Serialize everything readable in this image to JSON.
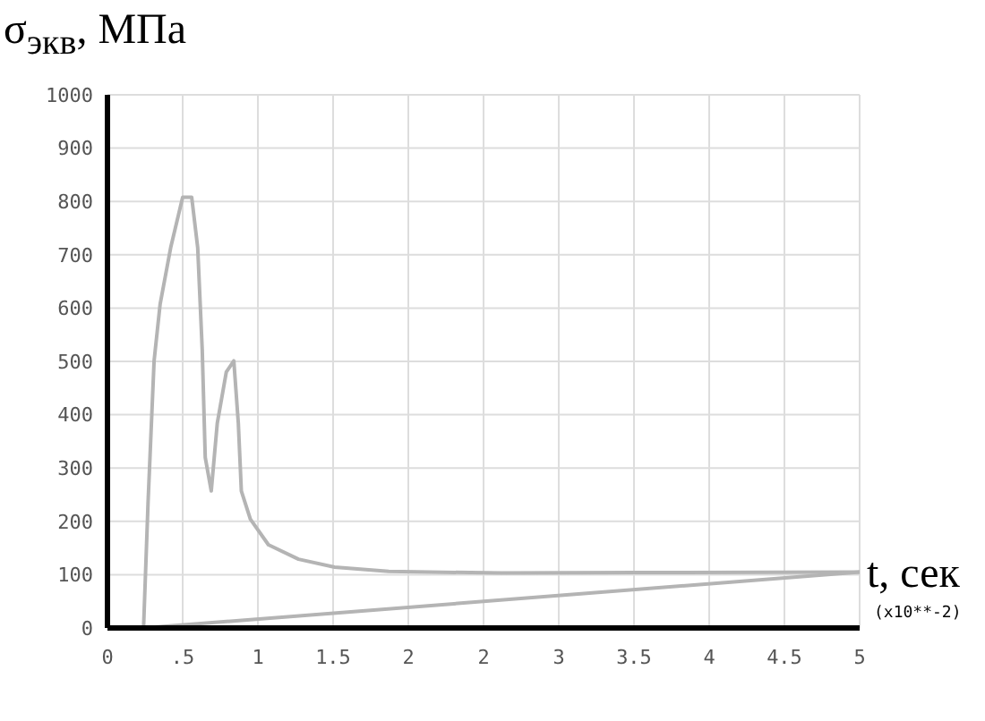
{
  "chart_data": {
    "type": "line",
    "ylabel": "σ$_{экв}$, МПа",
    "xlabel": "t, сек",
    "annotations": [
      "(x10**-2)"
    ],
    "series": [
      {
        "color": "#b4b4b4",
        "x": [
          0,
          0.24,
          0.27,
          0.31,
          0.35,
          0.42,
          0.5,
          0.56,
          0.6,
          0.63,
          0.65,
          0.69,
          0.73,
          0.79,
          0.84,
          0.87,
          0.89,
          0.95,
          1.07,
          1.27,
          1.51,
          1.87,
          2.62,
          3.5,
          5
        ],
        "values": [
          0,
          0,
          236,
          501,
          607,
          713,
          808,
          808,
          713,
          522,
          320,
          257,
          384,
          480,
          501,
          384,
          257,
          204,
          156,
          129,
          114,
          106,
          103,
          104,
          105
        ]
      },
      {
        "color": "#b4b4b4",
        "x": [
          0.24,
          5
        ],
        "values": [
          0,
          105
        ]
      }
    ],
    "xlim": [
      0,
      5
    ],
    "xticks": [
      0,
      {
        "value": 0.5,
        "label": ".5"
      },
      1,
      1.5,
      2,
      {
        "value": 2.5,
        "label": "2"
      },
      3,
      3.5,
      4,
      4.5,
      5
    ],
    "ylim": [
      0,
      1000
    ],
    "yticks": [
      0,
      100,
      200,
      300,
      400,
      500,
      600,
      700,
      800,
      900,
      1000
    ],
    "grid": true
  }
}
